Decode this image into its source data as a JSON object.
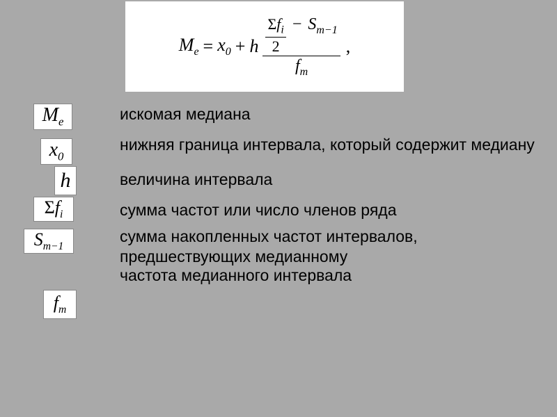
{
  "background_color": "#a9a9a9",
  "formula": {
    "lhs_base": "M",
    "lhs_sub": "e",
    "eq": "=",
    "x0_base": "x",
    "x0_sub": "0",
    "plus": "+",
    "h": "h",
    "sigma": "Σ",
    "f": "f",
    "i_sub": "i",
    "two": "2",
    "minus": "−",
    "S": "S",
    "m_minus_1": "m−1",
    "f_m_base": "f",
    "f_m_sub": "m",
    "comma": ","
  },
  "rows": [
    {
      "symbol_base": "M",
      "symbol_sub": "e",
      "desc": "искомая медиана"
    },
    {
      "symbol_base": "x",
      "symbol_sub": "0",
      "desc": "нижняя граница интервала, который содержит медиану"
    },
    {
      "symbol_base": "h",
      "symbol_sub": "",
      "desc": "величина интервала"
    },
    {
      "symbol_base": "Σf",
      "symbol_sub": "i",
      "desc": "сумма частот или число членов ряда"
    },
    {
      "symbol_base": "S",
      "symbol_sub": "m−1",
      "desc": "сумма накопленных частот интервалов, предшествующих медианному"
    },
    {
      "symbol_base": "f",
      "symbol_sub": "m",
      "desc": "частота медианного интервала"
    }
  ],
  "style": {
    "formula_box_bg": "#ffffff",
    "symbol_box_bg": "#ffffff",
    "text_color": "#000000",
    "desc_fontsize": 23,
    "formula_fontsize": 26,
    "symbol_fontsize": 28
  }
}
